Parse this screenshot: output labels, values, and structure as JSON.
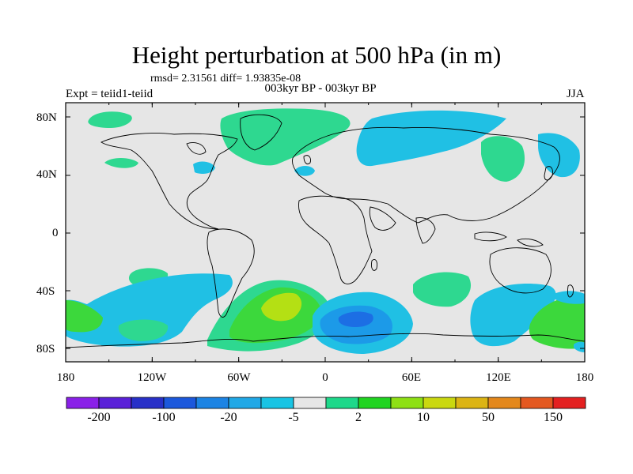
{
  "title": "Height perturbation at 500 hPa (in m)",
  "stats": "rmsd= 2.31561 diff= 1.93835e-08",
  "expt": "Expt = teiid1-teiid",
  "period": "003kyr BP - 003kyr BP",
  "season": "JJA",
  "lat_labels": [
    "80N",
    "40N",
    "0",
    "40S",
    "80S"
  ],
  "lon_labels": [
    "180",
    "120W",
    "60W",
    "0",
    "60E",
    "120E",
    "180"
  ],
  "colorbar": {
    "labels": [
      "-200",
      "-100",
      "-20",
      "-5",
      "2",
      "10",
      "50",
      "150"
    ],
    "colors": [
      "#8a20e8",
      "#5a20d8",
      "#2830c8",
      "#1c58dc",
      "#1c84e4",
      "#20a8e6",
      "#18c4e4",
      "#e6e6e6",
      "#1ed88a",
      "#20d420",
      "#8ee014",
      "#cad810",
      "#dcb414",
      "#e4881c",
      "#e45820",
      "#e42020"
    ]
  },
  "colors": {
    "ocean": "#e6e6e6",
    "coast": "#000000",
    "light_blue": "#20c0e4",
    "mid_blue": "#1c9ae8",
    "dark_blue": "#1c6ee4",
    "light_green": "#2ed890",
    "green": "#3cd83c",
    "yellow_green": "#b4e014"
  }
}
